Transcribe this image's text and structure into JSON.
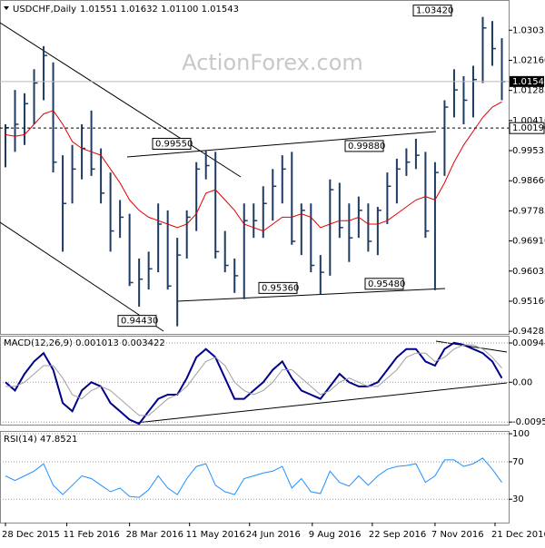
{
  "chart_data": [
    {
      "type": "ohlc",
      "title": "USDCHF,Daily",
      "subtitle": "1.01551 1.01632 1.01100 1.01543",
      "watermark": "ActionForex.com",
      "x": [
        "2015-12-28",
        "2016-01-04",
        "2016-01-11",
        "2016-01-18",
        "2016-01-25",
        "2016-02-01",
        "2016-02-08",
        "2016-02-15",
        "2016-02-22",
        "2016-02-29",
        "2016-03-07",
        "2016-03-14",
        "2016-03-21",
        "2016-03-28",
        "2016-04-04",
        "2016-04-11",
        "2016-04-18",
        "2016-04-25",
        "2016-05-02",
        "2016-05-09",
        "2016-05-16",
        "2016-05-23",
        "2016-05-30",
        "2016-06-06",
        "2016-06-13",
        "2016-06-20",
        "2016-06-27",
        "2016-07-04",
        "2016-07-11",
        "2016-07-18",
        "2016-07-25",
        "2016-08-01",
        "2016-08-08",
        "2016-08-15",
        "2016-08-22",
        "2016-08-29",
        "2016-09-05",
        "2016-09-12",
        "2016-09-19",
        "2016-09-26",
        "2016-10-03",
        "2016-10-10",
        "2016-10-17",
        "2016-10-24",
        "2016-10-31",
        "2016-11-07",
        "2016-11-14",
        "2016-11-21",
        "2016-11-28",
        "2016-12-05",
        "2016-12-12",
        "2016-12-19",
        "2016-12-26"
      ],
      "high": [
        1.003,
        1.013,
        1.012,
        1.019,
        1.0257,
        1.021,
        0.994,
        0.997,
        1.003,
        1.007,
        0.996,
        0.989,
        0.981,
        0.977,
        0.964,
        0.966,
        0.98,
        0.978,
        0.97,
        0.978,
        0.992,
        0.9955,
        0.995,
        0.972,
        0.964,
        0.98,
        0.98,
        0.985,
        0.99,
        0.994,
        0.995,
        0.98,
        0.98,
        0.965,
        0.987,
        0.986,
        0.98,
        0.982,
        0.98,
        0.979,
        0.989,
        0.993,
        0.996,
        0.9988,
        0.995,
        0.992,
        1.01,
        1.019,
        1.017,
        1.02,
        1.0342,
        1.033,
        1.028
      ],
      "low": [
        0.9905,
        0.995,
        0.997,
        1.003,
        1.01,
        0.989,
        0.966,
        0.98,
        0.987,
        0.988,
        0.98,
        0.966,
        0.97,
        0.956,
        0.95,
        0.955,
        0.96,
        0.955,
        0.9443,
        0.964,
        0.972,
        0.987,
        0.964,
        0.96,
        0.954,
        0.9522,
        0.97,
        0.97,
        0.975,
        0.98,
        0.968,
        0.965,
        0.96,
        0.9536,
        0.959,
        0.97,
        0.963,
        0.97,
        0.966,
        0.965,
        0.974,
        0.98,
        0.988,
        0.99,
        0.97,
        0.9548,
        0.988,
        1.005,
        1.003,
        1.005,
        1.015,
        1.02,
        1.01
      ],
      "close": [
        1.002,
        1.003,
        1.009,
        1.015,
        1.023,
        0.992,
        0.98,
        0.99,
        0.996,
        0.99,
        0.983,
        0.972,
        0.976,
        0.957,
        0.958,
        0.961,
        0.974,
        0.956,
        0.965,
        0.976,
        0.99,
        0.991,
        0.966,
        0.962,
        0.959,
        0.975,
        0.975,
        0.98,
        0.985,
        0.99,
        0.969,
        0.978,
        0.962,
        0.96,
        0.984,
        0.973,
        0.97,
        0.978,
        0.969,
        0.978,
        0.985,
        0.99,
        0.992,
        0.994,
        0.972,
        0.989,
        1.008,
        1.013,
        1.01,
        1.016,
        1.031,
        1.025,
        1.0154
      ],
      "color": "#1f3b63",
      "ma": [
        1.0,
        0.9995,
        1.0,
        1.003,
        1.006,
        1.007,
        1.003,
        0.998,
        0.996,
        0.995,
        0.994,
        0.99,
        0.986,
        0.981,
        0.978,
        0.976,
        0.975,
        0.974,
        0.973,
        0.974,
        0.977,
        0.983,
        0.984,
        0.981,
        0.978,
        0.974,
        0.973,
        0.972,
        0.974,
        0.976,
        0.976,
        0.977,
        0.976,
        0.973,
        0.974,
        0.975,
        0.975,
        0.976,
        0.974,
        0.974,
        0.975,
        0.977,
        0.979,
        0.981,
        0.982,
        0.981,
        0.986,
        0.992,
        0.997,
        1.001,
        1.005,
        1.008,
        1.0095
      ],
      "ma_color": "#e00000",
      "xlim": [
        "2015-12-24",
        "2016-12-31"
      ],
      "xticks": [
        {
          "value": "2015-12-28",
          "label": "28 Dec 2015"
        },
        {
          "value": "2016-02-11",
          "label": "11 Feb 2016"
        },
        {
          "value": "2016-03-28",
          "label": "28 Mar 2016"
        },
        {
          "value": "2016-05-11",
          "label": "11 May 2016"
        },
        {
          "value": "2016-06-24",
          "label": "24 Jun 2016"
        },
        {
          "value": "2016-08-09",
          "label": "9 Aug 2016"
        },
        {
          "value": "2016-09-22",
          "label": "22 Sep 2016"
        },
        {
          "value": "2016-11-07",
          "label": "7 Nov 2016"
        },
        {
          "value": "2016-12-21",
          "label": "21 Dec 2016"
        }
      ],
      "ylim": [
        0.9421,
        1.0378
      ],
      "yticks": [
        {
          "value": 1.03035,
          "label": "1.03035"
        },
        {
          "value": 1.0216,
          "label": "1.02160"
        },
        {
          "value": 1.01285,
          "label": "1.01285"
        },
        {
          "value": 1.0041,
          "label": "1.00410"
        },
        {
          "value": 0.99535,
          "label": "0.99535"
        },
        {
          "value": 0.9866,
          "label": "0.98660"
        },
        {
          "value": 0.97785,
          "label": "0.97785"
        },
        {
          "value": 0.9691,
          "label": "0.96910"
        },
        {
          "value": 0.96035,
          "label": "0.96035"
        },
        {
          "value": 0.9516,
          "label": "0.95160"
        },
        {
          "value": 0.94285,
          "label": "0.94285"
        }
      ],
      "current": {
        "value": 1.01543,
        "label": "1.01543"
      },
      "level": {
        "value": 1.0019,
        "label": "1.00190"
      },
      "annotations": [
        {
          "value": 1.0342,
          "label": "1.03420"
        },
        {
          "value": 0.9955,
          "label": "0.99550"
        },
        {
          "value": 0.9988,
          "label": "0.99880"
        },
        {
          "value": 0.9536,
          "label": "0.95360"
        },
        {
          "value": 0.9548,
          "label": "0.95480"
        },
        {
          "value": 0.9443,
          "label": "0.94430"
        }
      ]
    },
    {
      "type": "line",
      "title": "MACD(12,26,9) 0.001013 0.003422",
      "series": [
        {
          "color": "#00008b",
          "values": [
            0.0,
            -0.002,
            0.002,
            0.005,
            0.007,
            0.003,
            -0.005,
            -0.007,
            -0.002,
            0.0,
            -0.001,
            -0.005,
            -0.007,
            -0.009,
            -0.01,
            -0.007,
            -0.004,
            -0.003,
            -0.003,
            0.001,
            0.006,
            0.008,
            0.006,
            0.001,
            -0.004,
            -0.004,
            -0.002,
            0.0,
            0.003,
            0.005,
            0.001,
            -0.002,
            -0.003,
            -0.004,
            -0.001,
            0.002,
            0.0,
            -0.001,
            -0.001,
            0.0,
            0.003,
            0.006,
            0.008,
            0.008,
            0.005,
            0.004,
            0.008,
            0.0095,
            0.009,
            0.008,
            0.007,
            0.005,
            0.001
          ]
        },
        {
          "color": "#a0a0a0",
          "values": [
            -0.001,
            -0.001,
            0.0,
            0.002,
            0.004,
            0.004,
            0.001,
            -0.003,
            -0.004,
            -0.002,
            -0.001,
            -0.002,
            -0.004,
            -0.006,
            -0.008,
            -0.008,
            -0.006,
            -0.004,
            -0.003,
            -0.001,
            0.002,
            0.005,
            0.006,
            0.004,
            0.0,
            -0.002,
            -0.003,
            -0.002,
            0.0,
            0.003,
            0.003,
            0.001,
            -0.001,
            -0.003,
            -0.002,
            0.0,
            0.001,
            0.0,
            -0.001,
            -0.001,
            0.001,
            0.003,
            0.006,
            0.007,
            0.007,
            0.005,
            0.006,
            0.008,
            0.009,
            0.009,
            0.008,
            0.006,
            0.0034
          ]
        }
      ],
      "ylim": [
        -0.0102,
        0.0112
      ],
      "yticks": [
        0.009446,
        {
          "value": 0,
          "label": "0.00"
        },
        -0.009588
      ]
    },
    {
      "type": "line",
      "title": "RSI(14) 47.8521",
      "series": [
        {
          "color": "#1e90ff",
          "values": [
            55,
            50,
            55,
            60,
            68,
            45,
            35,
            45,
            55,
            52,
            45,
            38,
            42,
            33,
            32,
            40,
            55,
            42,
            35,
            52,
            65,
            68,
            45,
            38,
            35,
            52,
            55,
            58,
            60,
            65,
            42,
            52,
            38,
            36,
            60,
            48,
            44,
            55,
            45,
            55,
            62,
            65,
            66,
            68,
            48,
            55,
            72,
            72,
            65,
            68,
            74,
            62,
            48
          ]
        }
      ],
      "ylim": [
        5,
        102
      ],
      "yticks": [
        100,
        70,
        30
      ]
    }
  ]
}
